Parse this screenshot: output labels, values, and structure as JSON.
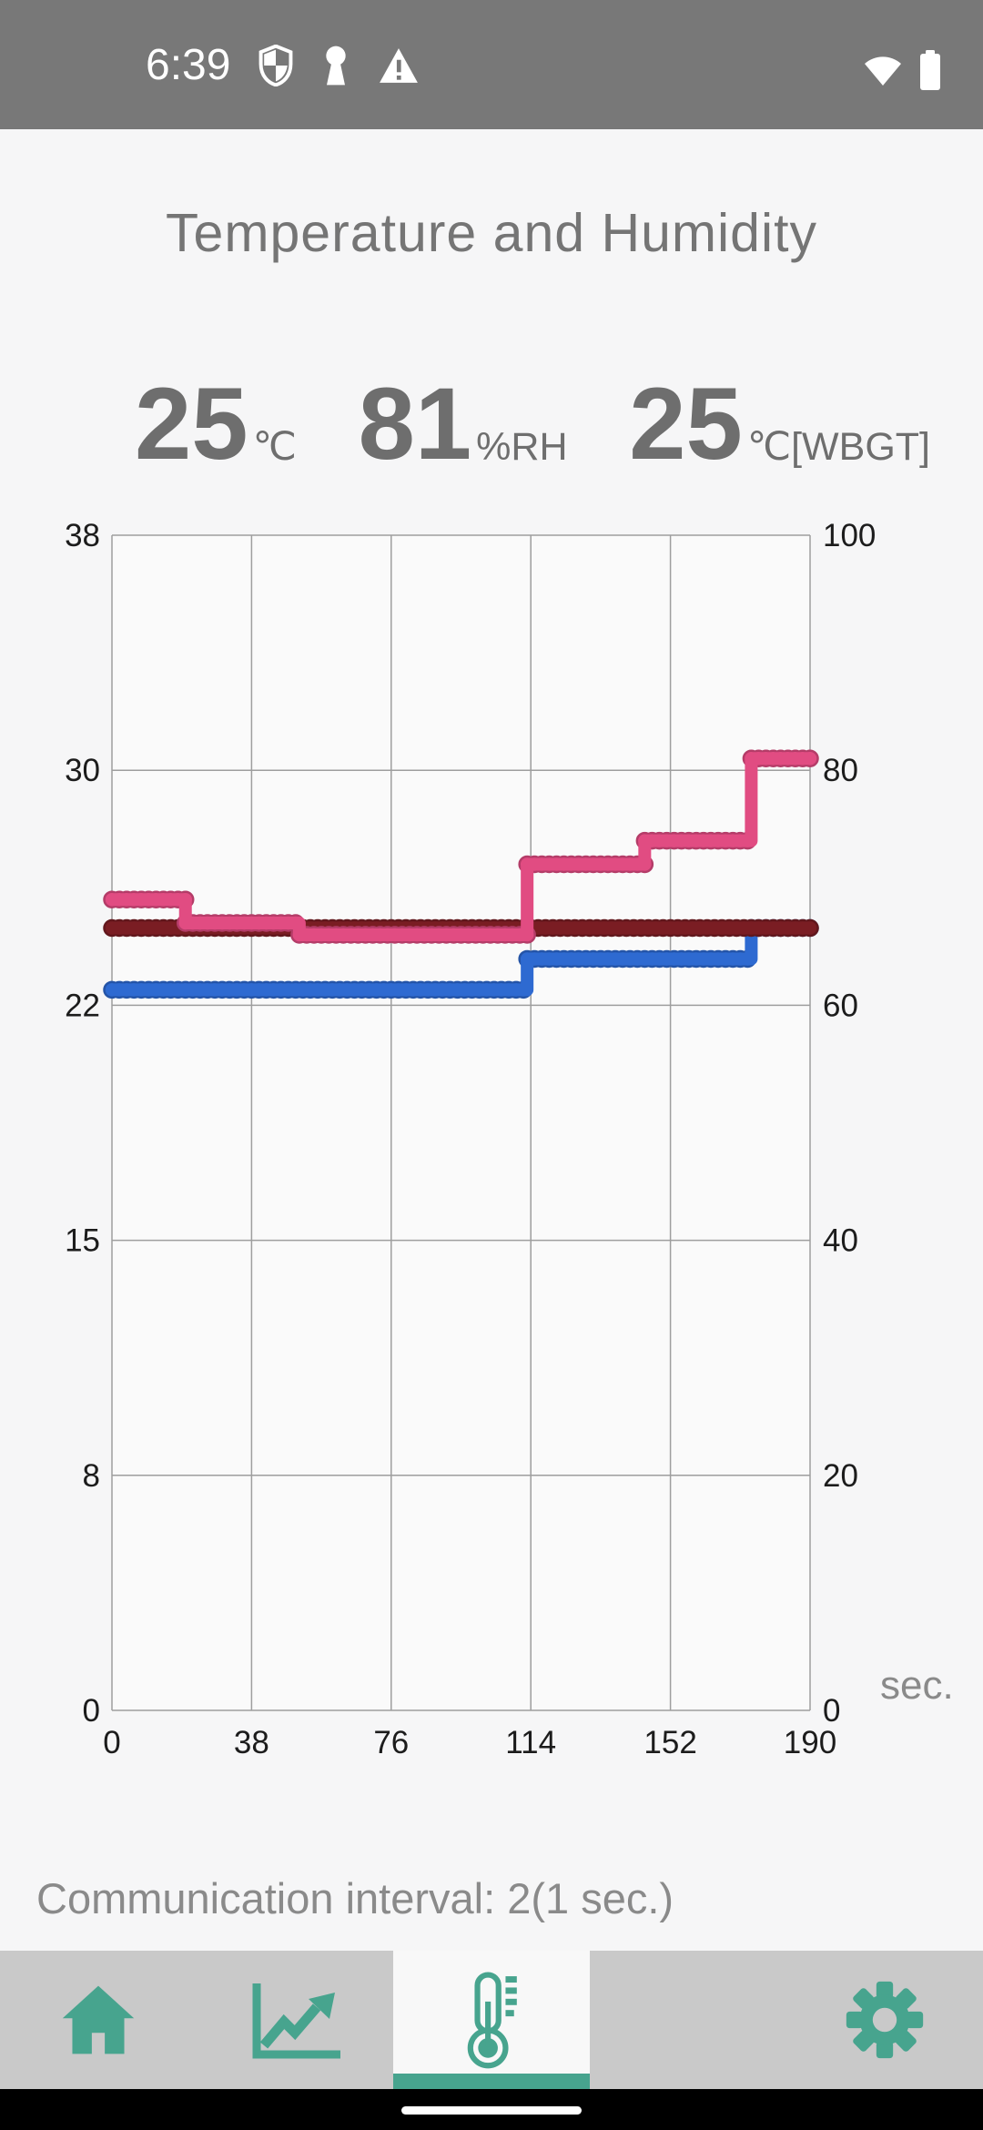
{
  "status_bar": {
    "time": "6:39",
    "left_icons": [
      "shield-icon",
      "keyhole-icon",
      "warning-icon"
    ],
    "right_icons": [
      "wifi-icon",
      "battery-icon"
    ]
  },
  "header": {
    "title": "Temperature and Humidity"
  },
  "readings": [
    {
      "value": "25",
      "unit": "℃"
    },
    {
      "value": "81",
      "unit": "%RH"
    },
    {
      "value": "25",
      "unit": "℃[WBGT]"
    }
  ],
  "chart_data": {
    "type": "line",
    "style": "step-line-with-point-markers",
    "x_range": [
      0,
      190
    ],
    "x_ticks": [
      0,
      38,
      76,
      114,
      152,
      190
    ],
    "x_unit": "sec.",
    "left_axis": {
      "range": [
        0,
        38
      ],
      "ticks": [
        38,
        30,
        22,
        15,
        8,
        0
      ]
    },
    "right_axis": {
      "range": [
        0,
        100
      ],
      "ticks": [
        100,
        80,
        60,
        40,
        20,
        0
      ]
    },
    "grid": true,
    "legend": false,
    "sample_interval_sec": 2,
    "series": [
      {
        "name": "Temperature",
        "axis": "left",
        "color": "#2e6ad1",
        "points": [
          [
            0,
            23.3
          ],
          [
            113,
            24.3
          ],
          [
            174,
            25.3
          ],
          [
            190,
            25.3
          ]
        ]
      },
      {
        "name": "WBGT",
        "axis": "left",
        "color": "#7a1d23",
        "points": [
          [
            0,
            25.3
          ],
          [
            190,
            25.3
          ]
        ]
      },
      {
        "name": "Humidity",
        "axis": "right",
        "color": "#e14c82",
        "points": [
          [
            0,
            69
          ],
          [
            20,
            67
          ],
          [
            51,
            66
          ],
          [
            113,
            72
          ],
          [
            145,
            74
          ],
          [
            174,
            81
          ],
          [
            190,
            81
          ]
        ]
      }
    ],
    "colors": {
      "grid": "#9e9e9e",
      "tick_text": "#1c1c1c",
      "unit_text": "#8a8a8a"
    }
  },
  "footer": {
    "communication_interval": "Communication interval: 2(1 sec.)"
  },
  "nav": {
    "accent": "#47a48e",
    "items": [
      {
        "id": "home",
        "icon": "home-icon",
        "selected": false
      },
      {
        "id": "trend",
        "icon": "line-chart-icon",
        "selected": false
      },
      {
        "id": "thermometer",
        "icon": "thermometer-icon",
        "selected": true
      },
      {
        "id": "empty",
        "icon": "",
        "selected": false
      },
      {
        "id": "settings",
        "icon": "gear-icon",
        "selected": false
      }
    ]
  }
}
